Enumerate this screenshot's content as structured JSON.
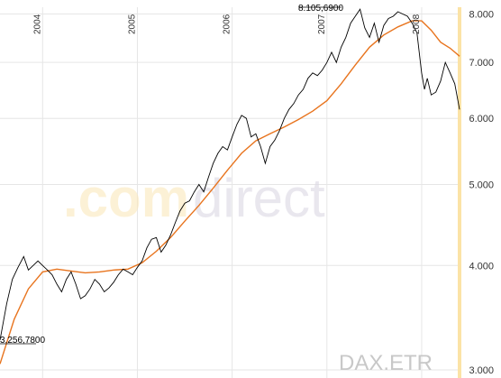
{
  "chart_data": {
    "type": "line",
    "title": "",
    "symbol": "DAX.ETR",
    "watermark": {
      "part1": ".com",
      "part2": "direct"
    },
    "x_ticks": [
      "2004",
      "2005",
      "2006",
      "2007",
      "2008"
    ],
    "y_ticks": [
      "8.000",
      "7.000",
      "6.000",
      "5.000",
      "4.000",
      "3.000"
    ],
    "y_scale": "log",
    "ylim": [
      3000,
      8150
    ],
    "xlim": [
      2003.55,
      2008.4
    ],
    "grid": true,
    "annotations": {
      "high": "8.105,6900",
      "low": "3.256,7800"
    },
    "colors": {
      "price": "#000000",
      "average": "#e8741e",
      "highlight": "#fbe3a6",
      "grid": "#e6e6e6"
    },
    "series": [
      {
        "kind": "price",
        "x": [
          2003.55,
          2003.62,
          2003.68,
          2003.74,
          2003.8,
          2003.85,
          2003.9,
          2003.95,
          2004.0,
          2004.05,
          2004.1,
          2004.15,
          2004.2,
          2004.25,
          2004.3,
          2004.35,
          2004.4,
          2004.45,
          2004.5,
          2004.55,
          2004.6,
          2004.65,
          2004.7,
          2004.75,
          2004.8,
          2004.85,
          2004.9,
          2004.95,
          2005.0,
          2005.05,
          2005.1,
          2005.15,
          2005.2,
          2005.25,
          2005.3,
          2005.35,
          2005.4,
          2005.45,
          2005.5,
          2005.55,
          2005.6,
          2005.65,
          2005.7,
          2005.75,
          2005.8,
          2005.85,
          2005.9,
          2005.95,
          2006.0,
          2006.05,
          2006.1,
          2006.15,
          2006.2,
          2006.25,
          2006.3,
          2006.35,
          2006.4,
          2006.45,
          2006.5,
          2006.55,
          2006.6,
          2006.65,
          2006.7,
          2006.75,
          2006.8,
          2006.85,
          2006.9,
          2006.95,
          2007.0,
          2007.05,
          2007.1,
          2007.15,
          2007.2,
          2007.25,
          2007.3,
          2007.35,
          2007.4,
          2007.45,
          2007.5,
          2007.55,
          2007.6,
          2007.65,
          2007.7,
          2007.75,
          2007.8,
          2007.85,
          2007.9,
          2007.95,
          2008.0,
          2008.03,
          2008.06,
          2008.1,
          2008.15,
          2008.2,
          2008.25,
          2008.3,
          2008.35,
          2008.4
        ],
        "values": [
          3256,
          3600,
          3850,
          3980,
          4100,
          3950,
          4000,
          4050,
          4000,
          3950,
          3900,
          3800,
          3720,
          3850,
          3930,
          3800,
          3650,
          3680,
          3750,
          3850,
          3800,
          3720,
          3760,
          3820,
          3900,
          3960,
          3930,
          3900,
          3980,
          4050,
          4200,
          4300,
          4320,
          4150,
          4230,
          4350,
          4500,
          4650,
          4750,
          4780,
          4900,
          5000,
          4900,
          5100,
          5300,
          5450,
          5550,
          5500,
          5700,
          5900,
          6050,
          6000,
          5700,
          5750,
          5550,
          5300,
          5550,
          5650,
          5800,
          6000,
          6150,
          6250,
          6400,
          6500,
          6700,
          6800,
          6750,
          6850,
          7000,
          7200,
          7000,
          7300,
          7500,
          7800,
          7950,
          8105,
          7700,
          7500,
          7800,
          7400,
          7750,
          7900,
          7950,
          8050,
          8000,
          7950,
          7800,
          7600,
          6800,
          6500,
          6700,
          6400,
          6450,
          6650,
          7000,
          6800,
          6600,
          6150
        ]
      },
      {
        "kind": "moving-average",
        "x": [
          2003.55,
          2003.7,
          2003.85,
          2004.0,
          2004.15,
          2004.3,
          2004.45,
          2004.6,
          2004.75,
          2004.9,
          2005.05,
          2005.2,
          2005.35,
          2005.5,
          2005.65,
          2005.8,
          2005.95,
          2006.1,
          2006.25,
          2006.4,
          2006.55,
          2006.7,
          2006.85,
          2007.0,
          2007.15,
          2007.3,
          2007.45,
          2007.6,
          2007.75,
          2007.9,
          2008.0,
          2008.1,
          2008.2,
          2008.3,
          2008.4
        ],
        "values": [
          3050,
          3450,
          3750,
          3930,
          3960,
          3940,
          3920,
          3930,
          3950,
          3960,
          4030,
          4160,
          4320,
          4520,
          4720,
          4950,
          5200,
          5450,
          5640,
          5750,
          5860,
          5980,
          6120,
          6300,
          6600,
          6950,
          7300,
          7550,
          7720,
          7850,
          7850,
          7650,
          7400,
          7280,
          7120
        ]
      }
    ]
  }
}
